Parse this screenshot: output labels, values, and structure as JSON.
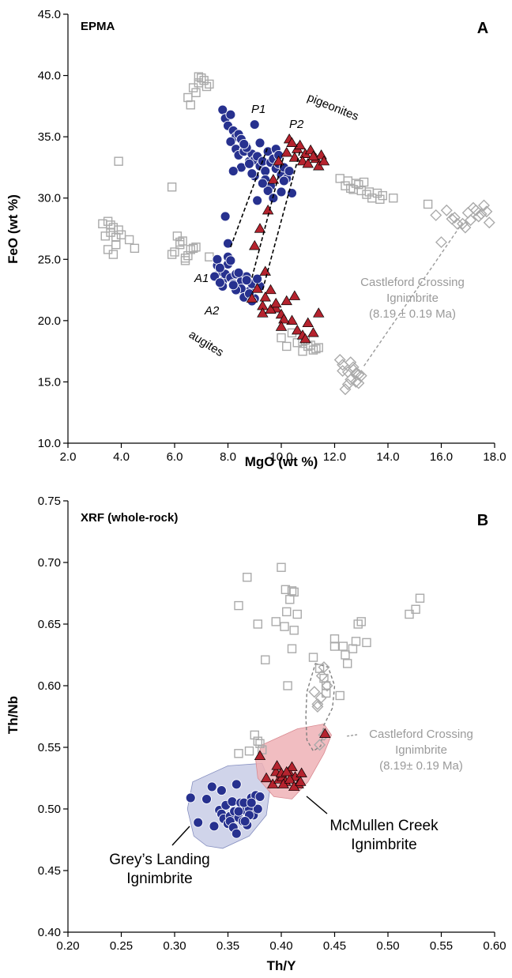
{
  "colors": {
    "blue": "#27318f",
    "red": "#b5232e",
    "grey": "#aaaaaa",
    "grey_text": "#9a9a9a",
    "blue_field": "#c8cde6",
    "red_field": "#efb1b6"
  },
  "chart_data": [
    {
      "id": "A",
      "type": "scatter",
      "panel_letter": "A",
      "method_label": "EPMA",
      "xlabel": "MgO (wt %)",
      "ylabel": "FeO (wt %)",
      "xlim": [
        2.0,
        18.0
      ],
      "ylim": [
        10.0,
        45.0
      ],
      "xticks": [
        2.0,
        4.0,
        6.0,
        8.0,
        10.0,
        12.0,
        14.0,
        16.0,
        18.0
      ],
      "yticks": [
        10.0,
        15.0,
        20.0,
        25.0,
        30.0,
        35.0,
        40.0,
        45.0
      ],
      "tick_decimals": 1,
      "grid": false,
      "annotations": {
        "pigeonites": "pigeonites",
        "augites": "augites",
        "p1": "P1",
        "p2": "P2",
        "a1": "A1",
        "a2": "A2",
        "castleford_line1": "Castleford Crossing",
        "castleford_line2": "Ignimbrite",
        "castleford_line3": "(8.19 ± 0.19 Ma)"
      },
      "tie_lines": [
        [
          [
            8.1,
            26.0
          ],
          [
            9.5,
            34.2
          ]
        ],
        [
          [
            8.9,
            23.5
          ],
          [
            10.1,
            33.5
          ]
        ],
        [
          [
            9.3,
            22.5
          ],
          [
            10.7,
            33.8
          ]
        ]
      ],
      "castleford_tie": [
        [
          13.1,
          16.3
        ],
        [
          16.8,
          28.0
        ]
      ],
      "series": [
        {
          "name": "Grey's Landing Ignimbrite",
          "marker": "circle",
          "x": [
            7.8,
            7.9,
            8.1,
            8.0,
            8.2,
            8.3,
            8.1,
            8.4,
            8.3,
            8.5,
            8.6,
            8.4,
            8.7,
            8.8,
            8.6,
            8.5,
            8.9,
            9.0,
            8.8,
            8.7,
            9.1,
            9.2,
            9.0,
            9.3,
            9.4,
            9.2,
            9.5,
            9.6,
            9.4,
            9.7,
            9.8,
            9.6,
            9.9,
            10.0,
            9.8,
            10.1,
            10.2,
            10.0,
            9.9,
            10.3,
            9.1,
            9.5,
            8.9,
            9.3,
            9.7,
            10.1,
            10.4,
            8.2,
            8.6,
            9.0,
            7.9,
            8.0,
            7.6,
            7.7,
            7.5,
            7.8,
            7.9,
            8.0,
            7.6,
            7.7,
            7.8,
            8.1,
            8.2,
            8.3,
            8.4,
            8.5,
            8.6,
            8.7,
            8.8,
            8.9,
            9.0,
            8.4,
            8.5,
            8.6,
            8.7,
            8.8,
            9.2,
            9.1,
            8.9,
            8.3,
            7.7,
            8.0,
            8.1,
            8.2
          ],
          "y": [
            37.2,
            36.5,
            36.8,
            35.9,
            35.5,
            35.0,
            34.6,
            35.2,
            34.0,
            34.8,
            33.9,
            33.5,
            34.2,
            33.0,
            33.8,
            32.5,
            33.6,
            33.1,
            32.8,
            34.1,
            33.4,
            32.6,
            31.8,
            33.0,
            32.2,
            34.5,
            33.8,
            32.9,
            31.5,
            33.2,
            32.4,
            31.0,
            32.8,
            31.9,
            34.0,
            32.5,
            31.6,
            30.5,
            33.5,
            32.2,
            29.8,
            30.6,
            32.0,
            31.2,
            30.0,
            31.4,
            30.4,
            32.2,
            34.4,
            36.0,
            28.5,
            26.3,
            24.5,
            24.0,
            23.6,
            23.2,
            23.8,
            24.6,
            25.0,
            24.3,
            22.8,
            23.5,
            23.0,
            23.8,
            22.5,
            23.2,
            22.0,
            23.6,
            22.4,
            23.0,
            21.8,
            23.9,
            22.6,
            21.9,
            23.3,
            22.2,
            22.8,
            23.4,
            21.6,
            22.5,
            23.1,
            25.2,
            24.9,
            22.9
          ]
        },
        {
          "name": "McMullen Creek Ignimbrite",
          "marker": "triangle",
          "x": [
            10.3,
            10.6,
            10.9,
            11.1,
            11.3,
            11.5,
            10.8,
            11.0,
            11.2,
            10.5,
            10.7,
            11.4,
            11.6,
            10.2,
            10.4,
            9.9,
            9.7,
            9.5,
            9.2,
            9.0,
            9.4,
            9.1,
            8.9,
            9.3,
            9.6,
            9.8,
            10.0,
            10.2,
            10.4,
            10.6,
            10.8,
            11.0,
            11.2,
            11.4,
            10.9,
            10.5,
            9.3,
            9.6,
            10.1,
            9.4,
            9.8,
            10.0
          ],
          "y": [
            34.8,
            34.0,
            33.6,
            33.9,
            33.2,
            33.5,
            33.0,
            32.8,
            33.4,
            33.3,
            34.3,
            32.6,
            33.0,
            33.7,
            34.5,
            33.0,
            31.5,
            29.0,
            27.5,
            26.1,
            24.0,
            22.6,
            21.8,
            21.2,
            22.5,
            21.0,
            20.5,
            21.6,
            20.0,
            19.2,
            18.8,
            19.8,
            19.0,
            20.6,
            18.5,
            22.0,
            20.6,
            20.9,
            20.1,
            21.9,
            21.4,
            19.5
          ]
        },
        {
          "name": "Castleford Crossing Ignimbrite (EPMA)",
          "marker": "diamond",
          "x": [
            15.8,
            16.2,
            16.5,
            16.8,
            17.0,
            17.2,
            17.4,
            17.6,
            17.8,
            16.9,
            17.1,
            17.3,
            17.5,
            16.6,
            16.4,
            17.7,
            16.0,
            12.3,
            12.5,
            12.7,
            12.9,
            12.6,
            12.4,
            12.8,
            13.0,
            12.2,
            12.5,
            12.7,
            12.3,
            12.9,
            12.6,
            12.8
          ],
          "y": [
            28.6,
            29.0,
            28.4,
            27.9,
            28.8,
            29.2,
            28.5,
            29.4,
            28.0,
            27.6,
            28.2,
            29.0,
            28.7,
            27.9,
            28.3,
            28.9,
            26.4,
            16.4,
            15.8,
            16.2,
            15.6,
            15.2,
            14.4,
            15.0,
            15.5,
            16.8,
            14.8,
            16.0,
            15.9,
            14.9,
            16.6,
            15.7
          ]
        },
        {
          "name": "Reference pyroxenes",
          "marker": "square",
          "x": [
            3.3,
            3.5,
            3.7,
            3.9,
            3.4,
            3.6,
            3.8,
            4.0,
            3.5,
            3.7,
            4.3,
            4.5,
            3.6,
            3.8,
            6.0,
            6.2,
            6.4,
            6.6,
            6.8,
            6.1,
            6.3,
            6.5,
            6.7,
            5.9,
            6.2,
            6.4,
            6.9,
            7.1,
            7.3,
            6.7,
            6.8,
            7.0,
            7.2,
            6.6,
            6.9,
            6.5,
            5.9,
            3.9,
            10.8,
            11.0,
            11.2,
            11.4,
            10.9,
            11.1,
            11.3,
            10.6,
            10.8,
            10.2,
            10.0,
            10.4,
            12.2,
            12.4,
            12.6,
            12.8,
            13.0,
            13.2,
            13.4,
            13.6,
            13.8,
            12.5,
            12.9,
            13.3,
            13.7,
            12.7,
            13.1,
            14.2,
            15.5,
            7.3
          ],
          "y": [
            27.9,
            28.1,
            27.6,
            27.4,
            26.9,
            27.2,
            26.8,
            27.0,
            25.8,
            25.4,
            26.6,
            25.9,
            27.8,
            26.2,
            25.6,
            26.4,
            25.1,
            25.8,
            26.0,
            26.9,
            26.5,
            25.3,
            25.9,
            25.4,
            26.2,
            24.9,
            39.4,
            39.6,
            39.3,
            39.0,
            38.6,
            39.8,
            39.1,
            37.6,
            39.9,
            38.2,
            30.9,
            33.0,
            18.3,
            17.9,
            17.6,
            17.8,
            18.4,
            18.0,
            17.7,
            18.2,
            17.5,
            17.9,
            18.6,
            19.0,
            31.6,
            31.0,
            30.8,
            31.2,
            30.6,
            30.3,
            30.0,
            30.4,
            30.2,
            31.4,
            31.1,
            30.5,
            29.9,
            30.7,
            31.3,
            30.0,
            29.5,
            25.2
          ]
        }
      ]
    },
    {
      "id": "B",
      "type": "scatter",
      "panel_letter": "B",
      "method_label": "XRF (whole-rock)",
      "xlabel": "Th/Y",
      "ylabel": "Th/Nb",
      "xlim": [
        0.2,
        0.6
      ],
      "ylim": [
        0.4,
        0.75
      ],
      "xticks": [
        0.2,
        0.25,
        0.3,
        0.35,
        0.4,
        0.45,
        0.5,
        0.55,
        0.6
      ],
      "yticks": [
        0.4,
        0.45,
        0.5,
        0.55,
        0.6,
        0.65,
        0.7,
        0.75
      ],
      "tick_decimals": 2,
      "grid": false,
      "annotations": {
        "greys_line1": "Grey’s Landing",
        "greys_line2": "Ignimbrite",
        "mcmullen_line1": "McMullen Creek",
        "mcmullen_line2": "Ignimbrite",
        "castleford_line1": "Castleford Crossing",
        "castleford_line2": "Ignimbrite",
        "castleford_line3": "(8.19± 0.19 Ma)"
      },
      "fields": {
        "greys": [
          [
            0.317,
            0.522
          ],
          [
            0.35,
            0.535
          ],
          [
            0.382,
            0.537
          ],
          [
            0.39,
            0.52
          ],
          [
            0.386,
            0.495
          ],
          [
            0.37,
            0.478
          ],
          [
            0.345,
            0.468
          ],
          [
            0.33,
            0.47
          ],
          [
            0.318,
            0.478
          ],
          [
            0.312,
            0.5
          ]
        ],
        "mcmullen": [
          [
            0.382,
            0.552
          ],
          [
            0.415,
            0.565
          ],
          [
            0.44,
            0.569
          ],
          [
            0.447,
            0.56
          ],
          [
            0.44,
            0.545
          ],
          [
            0.425,
            0.522
          ],
          [
            0.41,
            0.508
          ],
          [
            0.393,
            0.51
          ],
          [
            0.378,
            0.525
          ],
          [
            0.376,
            0.54
          ]
        ],
        "castleford": [
          [
            0.432,
            0.618
          ],
          [
            0.444,
            0.615
          ],
          [
            0.45,
            0.6
          ],
          [
            0.448,
            0.582
          ],
          [
            0.44,
            0.568
          ],
          [
            0.437,
            0.551
          ],
          [
            0.43,
            0.547
          ],
          [
            0.424,
            0.556
          ],
          [
            0.423,
            0.575
          ],
          [
            0.424,
            0.595
          ]
        ]
      },
      "series": [
        {
          "name": "Grey’s Landing Ignimbrite",
          "marker": "circle",
          "x": [
            0.315,
            0.322,
            0.335,
            0.337,
            0.33,
            0.342,
            0.344,
            0.346,
            0.348,
            0.35,
            0.352,
            0.354,
            0.356,
            0.358,
            0.36,
            0.362,
            0.364,
            0.366,
            0.368,
            0.37,
            0.372,
            0.374,
            0.376,
            0.378,
            0.352,
            0.355,
            0.36,
            0.365,
            0.37,
            0.344,
            0.358,
            0.366,
            0.372,
            0.38
          ],
          "y": [
            0.509,
            0.489,
            0.518,
            0.486,
            0.508,
            0.499,
            0.496,
            0.492,
            0.503,
            0.488,
            0.494,
            0.506,
            0.498,
            0.52,
            0.493,
            0.505,
            0.49,
            0.499,
            0.487,
            0.5,
            0.509,
            0.495,
            0.511,
            0.5,
            0.49,
            0.485,
            0.498,
            0.505,
            0.495,
            0.515,
            0.48,
            0.49,
            0.505,
            0.51
          ]
        },
        {
          "name": "McMullen Creek Ignimbrite",
          "marker": "triangle",
          "x": [
            0.38,
            0.386,
            0.392,
            0.395,
            0.398,
            0.401,
            0.404,
            0.407,
            0.41,
            0.413,
            0.416,
            0.419,
            0.402,
            0.408,
            0.412,
            0.418,
            0.396,
            0.4,
            0.405,
            0.441
          ],
          "y": [
            0.543,
            0.525,
            0.52,
            0.53,
            0.524,
            0.526,
            0.522,
            0.53,
            0.534,
            0.526,
            0.52,
            0.529,
            0.52,
            0.524,
            0.518,
            0.522,
            0.535,
            0.529,
            0.53,
            0.561
          ]
        },
        {
          "name": "Castleford Crossing Ignimbrite (XRF)",
          "marker": "diamond",
          "x": [
            0.431,
            0.434,
            0.437,
            0.44,
            0.443,
            0.438,
            0.434,
            0.436,
            0.44
          ],
          "y": [
            0.595,
            0.585,
            0.59,
            0.615,
            0.6,
            0.608,
            0.583,
            0.552,
            0.56
          ]
        },
        {
          "name": "Reference whole-rock",
          "marker": "square",
          "x": [
            0.36,
            0.37,
            0.36,
            0.368,
            0.375,
            0.378,
            0.38,
            0.382,
            0.378,
            0.385,
            0.4,
            0.404,
            0.408,
            0.405,
            0.41,
            0.412,
            0.415,
            0.412,
            0.395,
            0.403,
            0.406,
            0.41,
            0.43,
            0.436,
            0.44,
            0.442,
            0.45,
            0.458,
            0.46,
            0.467,
            0.47,
            0.472,
            0.475,
            0.462,
            0.455,
            0.52,
            0.526,
            0.53,
            0.48,
            0.45,
            0.442
          ],
          "y": [
            0.545,
            0.547,
            0.665,
            0.688,
            0.56,
            0.555,
            0.553,
            0.548,
            0.65,
            0.621,
            0.696,
            0.678,
            0.67,
            0.66,
            0.677,
            0.645,
            0.658,
            0.676,
            0.652,
            0.648,
            0.6,
            0.63,
            0.623,
            0.614,
            0.606,
            0.6,
            0.638,
            0.632,
            0.625,
            0.63,
            0.636,
            0.65,
            0.652,
            0.618,
            0.592,
            0.658,
            0.662,
            0.671,
            0.635,
            0.632,
            0.594
          ]
        }
      ]
    }
  ]
}
